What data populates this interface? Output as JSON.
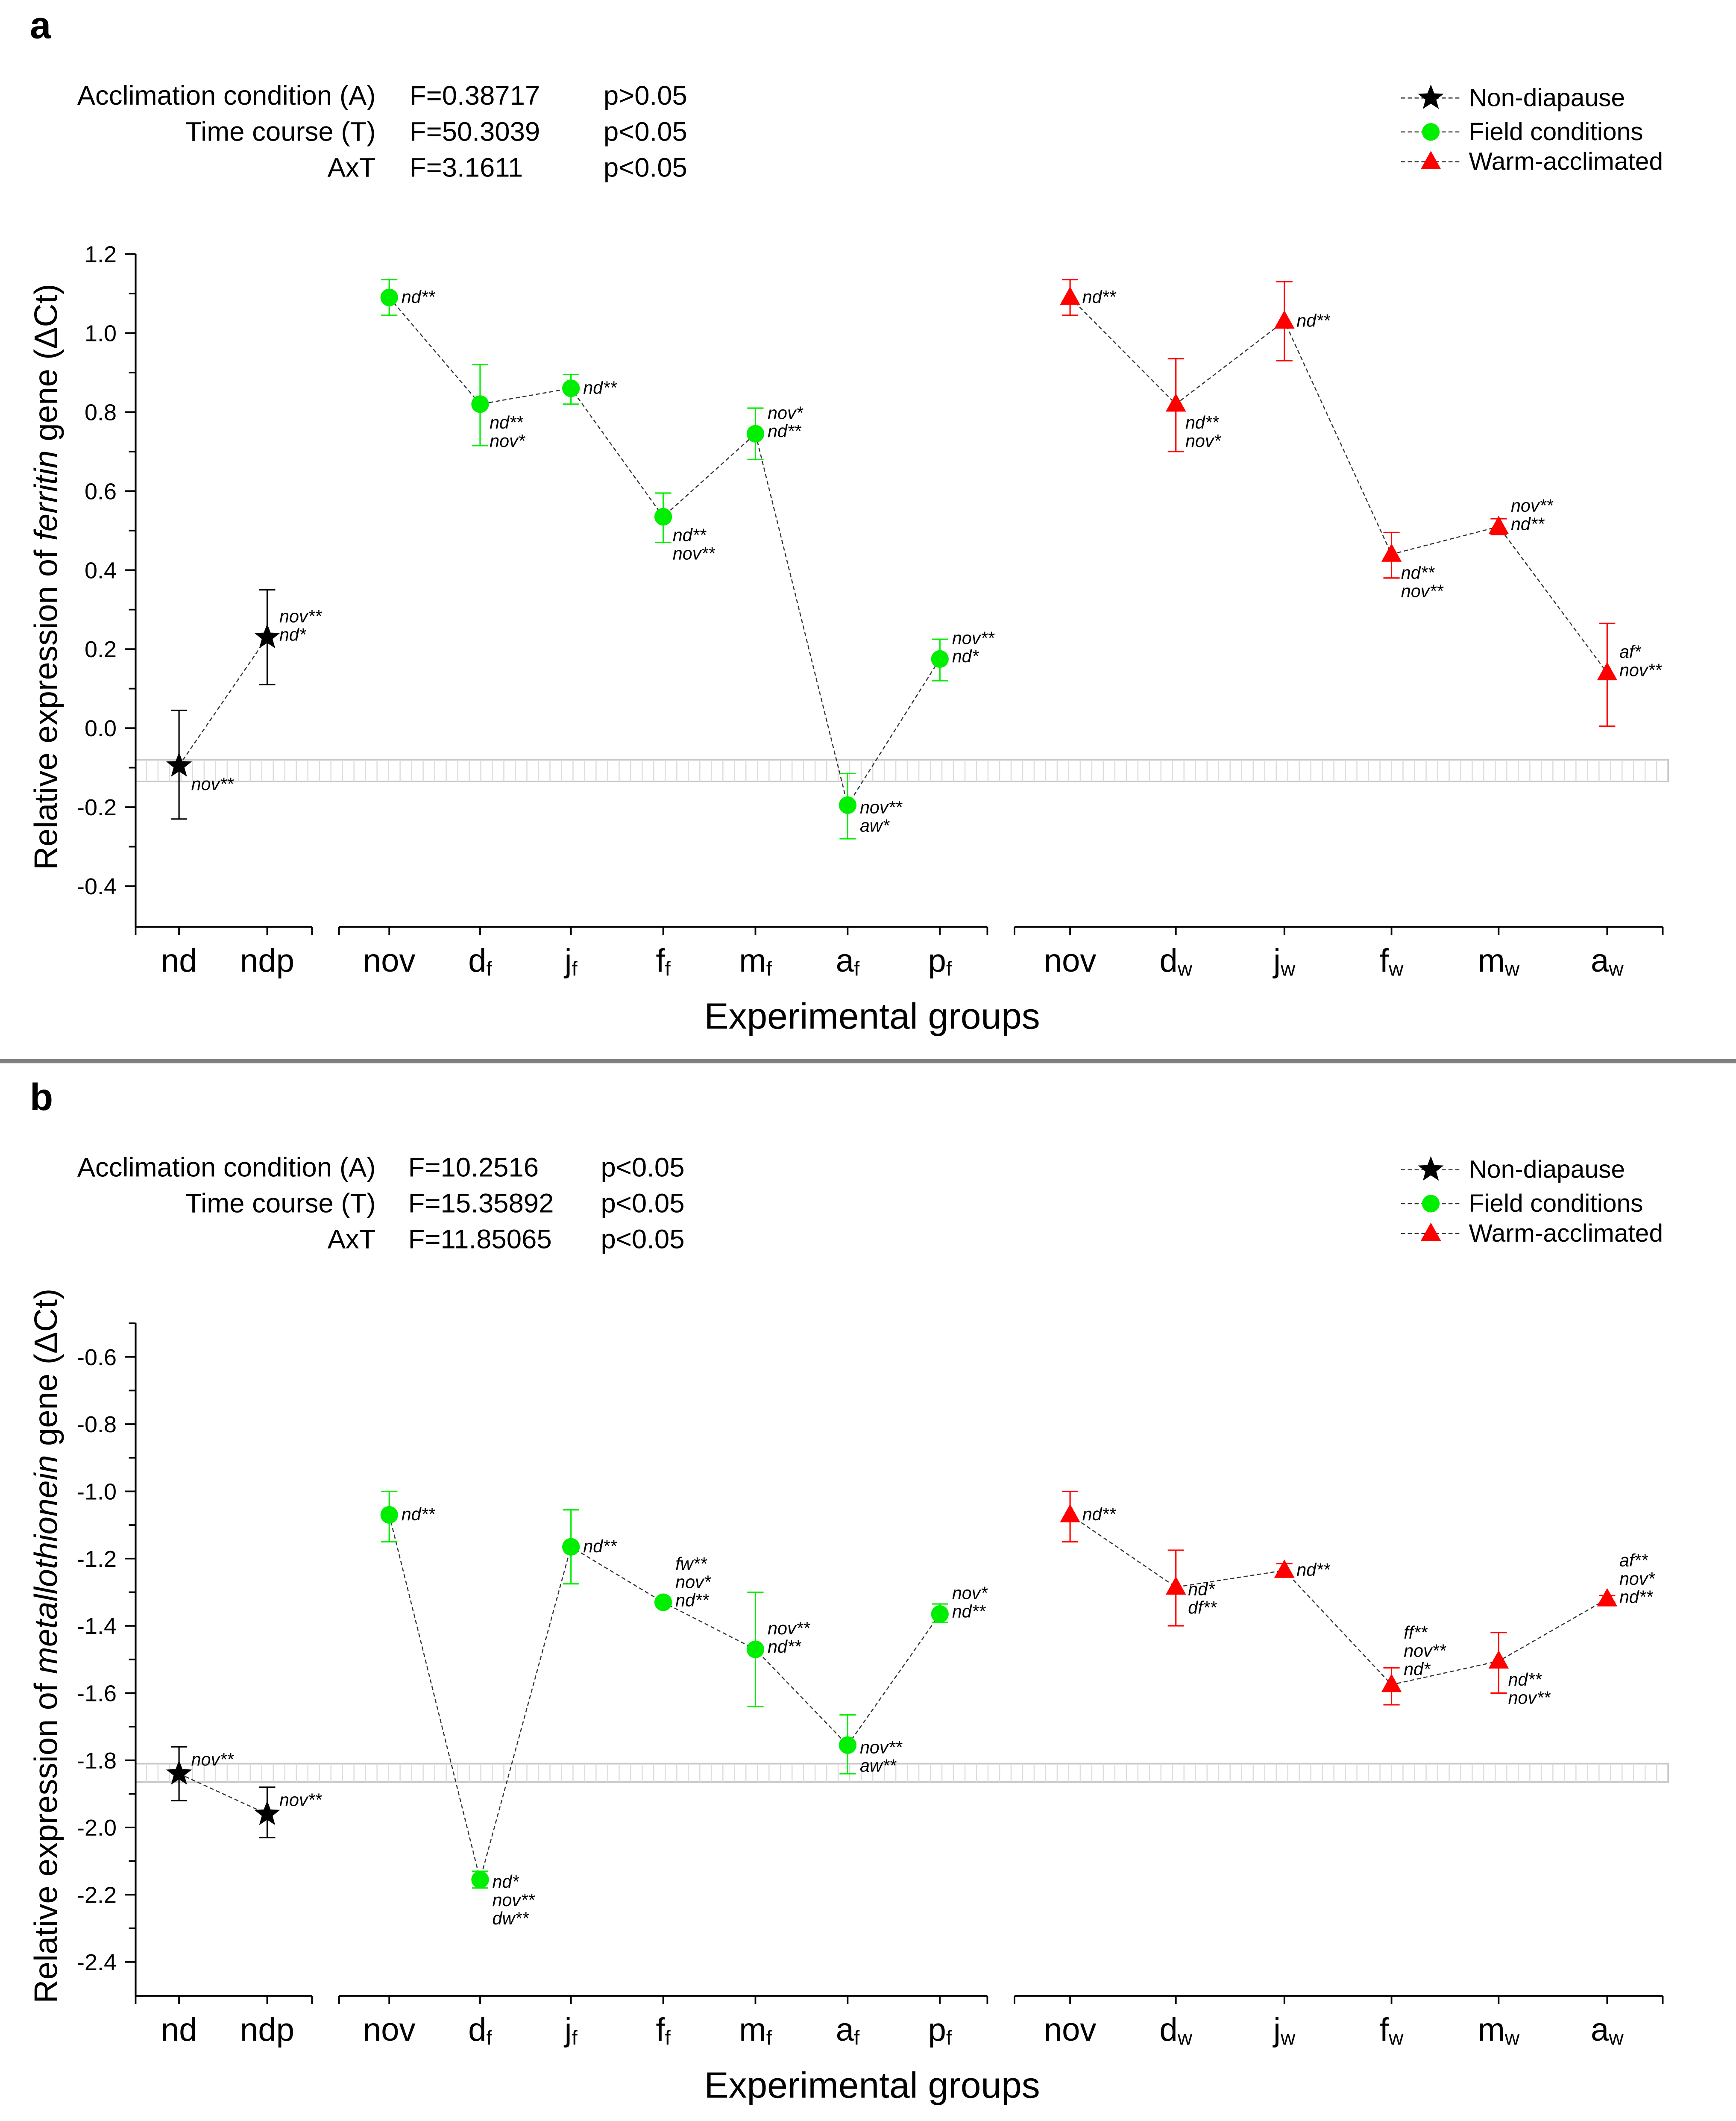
{
  "colors": {
    "non_diapause": "#000000",
    "field": "#00ee00",
    "warm": "#ff0000",
    "band": "#c8c8c8",
    "divider": "#808080"
  },
  "legend": [
    "Non-diapause",
    "Field conditions",
    "Warm-acclimated"
  ],
  "chart_data": [
    {
      "type": "scatter",
      "panel_label": "a",
      "stats": [
        {
          "label": "Acclimation condition (A)",
          "F": "F=0.38717",
          "p": "p>0.05"
        },
        {
          "label": "Time course (T)",
          "F": "F=50.3039",
          "p": "p<0.05"
        },
        {
          "label": "AxT",
          "F": "F=3.1611",
          "p": "p<0.05"
        }
      ],
      "ylabel_pre": "Relative expression of ",
      "ylabel_gene": "ferritin",
      "ylabel_post": " gene (ΔCt)",
      "xlabel": "Experimental groups",
      "ylim": [
        -0.5,
        1.2
      ],
      "yticks": [
        "1.2",
        "1.0",
        "0.8",
        "0.6",
        "0.4",
        "0.2",
        "0.0",
        "-0.2",
        "-0.4"
      ],
      "band": [
        -0.135,
        -0.08
      ],
      "categories": [
        {
          "main": "nd",
          "sub": ""
        },
        {
          "main": "ndp",
          "sub": ""
        },
        {
          "main": "nov",
          "sub": ""
        },
        {
          "main": "d",
          "sub": "f"
        },
        {
          "main": "j",
          "sub": "f"
        },
        {
          "main": "f",
          "sub": "f"
        },
        {
          "main": "m",
          "sub": "f"
        },
        {
          "main": "a",
          "sub": "f"
        },
        {
          "main": "p",
          "sub": "f"
        },
        {
          "main": "nov",
          "sub": ""
        },
        {
          "main": "d",
          "sub": "w"
        },
        {
          "main": "j",
          "sub": "w"
        },
        {
          "main": "f",
          "sub": "w"
        },
        {
          "main": "m",
          "sub": "w"
        },
        {
          "main": "a",
          "sub": "w"
        }
      ],
      "series": [
        {
          "name": "Non-diapause",
          "marker": "star",
          "color_key": "non_diapause",
          "indices": [
            0,
            1
          ],
          "values": [
            -0.095,
            0.23
          ],
          "err_hi": [
            0.045,
            0.35
          ],
          "err_lo": [
            -0.23,
            0.11
          ],
          "annotations": [
            {
              "pos": "below",
              "lines": [
                "nov**"
              ]
            },
            {
              "pos": "above",
              "lines": [
                "nov**",
                "nd*"
              ]
            }
          ]
        },
        {
          "name": "Field conditions",
          "marker": "circle",
          "color_key": "field",
          "indices": [
            2,
            3,
            4,
            5,
            6,
            7,
            8
          ],
          "values": [
            1.09,
            0.82,
            0.86,
            0.535,
            0.745,
            -0.195,
            0.175
          ],
          "err_hi": [
            1.135,
            0.92,
            0.895,
            0.595,
            0.81,
            -0.115,
            0.225
          ],
          "err_lo": [
            1.045,
            0.715,
            0.82,
            0.47,
            0.68,
            -0.28,
            0.12
          ],
          "annotations": [
            {
              "pos": "right",
              "lines": [
                "nd**"
              ]
            },
            {
              "pos": "below",
              "lines": [
                "nd**",
                "nov*"
              ]
            },
            {
              "pos": "right",
              "lines": [
                "nd**"
              ]
            },
            {
              "pos": "below",
              "lines": [
                "nd**",
                "nov**"
              ]
            },
            {
              "pos": "above",
              "lines": [
                "nov*",
                "nd**"
              ]
            },
            {
              "pos": "right-down",
              "lines": [
                "nov**",
                "aw*"
              ]
            },
            {
              "pos": "above",
              "lines": [
                "nov**",
                "nd*"
              ]
            }
          ]
        },
        {
          "name": "Warm-acclimated",
          "marker": "triangle",
          "color_key": "warm",
          "indices": [
            9,
            10,
            11,
            12,
            13,
            14
          ],
          "values": [
            1.09,
            0.82,
            1.03,
            0.44,
            0.51,
            0.14
          ],
          "err_hi": [
            1.135,
            0.935,
            1.13,
            0.495,
            0.53,
            0.265
          ],
          "err_lo": [
            1.045,
            0.7,
            0.93,
            0.38,
            0.49,
            0.005
          ],
          "annotations": [
            {
              "pos": "right",
              "lines": [
                "nd**"
              ]
            },
            {
              "pos": "below",
              "lines": [
                "nd**",
                "nov*"
              ]
            },
            {
              "pos": "right",
              "lines": [
                "nd**"
              ]
            },
            {
              "pos": "below",
              "lines": [
                "nd**",
                "nov**"
              ]
            },
            {
              "pos": "above",
              "lines": [
                "nov**",
                "nd**"
              ]
            },
            {
              "pos": "above",
              "lines": [
                "af*",
                "nov**"
              ]
            }
          ]
        }
      ]
    },
    {
      "type": "scatter",
      "panel_label": "b",
      "stats": [
        {
          "label": "Acclimation condition (A)",
          "F": "F=10.2516",
          "p": "p<0.05"
        },
        {
          "label": "Time course (T)",
          "F": "F=15.35892",
          "p": "p<0.05"
        },
        {
          "label": "AxT",
          "F": "F=11.85065",
          "p": "p<0.05"
        }
      ],
      "ylabel_pre": "Relative expression of ",
      "ylabel_gene": "metallothionein",
      "ylabel_post": " gene (ΔCt)",
      "xlabel": "Experimental groups",
      "ylim": [
        -2.5,
        -0.5
      ],
      "yticks": [
        "-0.6",
        "-0.8",
        "-1.0",
        "-1.2",
        "-1.4",
        "-1.6",
        "-1.8",
        "-2.0",
        "-2.2",
        "-2.4"
      ],
      "band": [
        -1.865,
        -1.81
      ],
      "categories": [
        {
          "main": "nd",
          "sub": ""
        },
        {
          "main": "ndp",
          "sub": ""
        },
        {
          "main": "nov",
          "sub": ""
        },
        {
          "main": "d",
          "sub": "f"
        },
        {
          "main": "j",
          "sub": "f"
        },
        {
          "main": "f",
          "sub": "f"
        },
        {
          "main": "m",
          "sub": "f"
        },
        {
          "main": "a",
          "sub": "f"
        },
        {
          "main": "p",
          "sub": "f"
        },
        {
          "main": "nov",
          "sub": ""
        },
        {
          "main": "d",
          "sub": "w"
        },
        {
          "main": "j",
          "sub": "w"
        },
        {
          "main": "f",
          "sub": "w"
        },
        {
          "main": "m",
          "sub": "w"
        },
        {
          "main": "a",
          "sub": "w"
        }
      ],
      "series": [
        {
          "name": "Non-diapause",
          "marker": "star",
          "color_key": "non_diapause",
          "indices": [
            0,
            1
          ],
          "values": [
            -1.84,
            -1.96
          ],
          "err_hi": [
            -1.76,
            -1.88
          ],
          "err_lo": [
            -1.92,
            -2.03
          ],
          "annotations": [
            {
              "pos": "right-up",
              "lines": [
                "nov**"
              ]
            },
            {
              "pos": "right-up",
              "lines": [
                "nov**"
              ]
            }
          ]
        },
        {
          "name": "Field conditions",
          "marker": "circle",
          "color_key": "field",
          "indices": [
            2,
            3,
            4,
            5,
            6,
            7,
            8
          ],
          "values": [
            -1.07,
            -2.155,
            -1.165,
            -1.33,
            -1.47,
            -1.755,
            -1.365
          ],
          "err_hi": [
            -1.0,
            -2.13,
            -1.055,
            -1.32,
            -1.3,
            -1.665,
            -1.335
          ],
          "err_lo": [
            -1.15,
            -2.18,
            -1.275,
            -1.34,
            -1.64,
            -1.84,
            -1.39
          ],
          "annotations": [
            {
              "pos": "right",
              "lines": [
                "nd**"
              ]
            },
            {
              "pos": "right-down",
              "lines": [
                "nd*",
                "nov**",
                "dw**"
              ]
            },
            {
              "pos": "right",
              "lines": [
                "nd**"
              ]
            },
            {
              "pos": "above",
              "lines": [
                "fw**",
                "nov*",
                "nd**"
              ]
            },
            {
              "pos": "above",
              "lines": [
                "nov**",
                "nd**"
              ]
            },
            {
              "pos": "right-down",
              "lines": [
                "nov**",
                "aw**"
              ]
            },
            {
              "pos": "above",
              "lines": [
                "nov*",
                "nd**"
              ]
            }
          ]
        },
        {
          "name": "Warm-acclimated",
          "marker": "triangle",
          "color_key": "warm",
          "indices": [
            9,
            10,
            11,
            12,
            13,
            14
          ],
          "values": [
            -1.07,
            -1.285,
            -1.235,
            -1.575,
            -1.505,
            -1.32
          ],
          "err_hi": [
            -1.0,
            -1.175,
            -1.215,
            -1.525,
            -1.42,
            -1.31
          ],
          "err_lo": [
            -1.15,
            -1.4,
            -1.255,
            -1.635,
            -1.6,
            -1.33
          ],
          "annotations": [
            {
              "pos": "right",
              "lines": [
                "nd**"
              ]
            },
            {
              "pos": "right-down",
              "lines": [
                "nd*",
                "df**"
              ]
            },
            {
              "pos": "right",
              "lines": [
                "nd**"
              ]
            },
            {
              "pos": "above-high",
              "lines": [
                "ff**",
                "nov**",
                "nd*"
              ]
            },
            {
              "pos": "below",
              "lines": [
                "nd**",
                "nov**"
              ]
            },
            {
              "pos": "above",
              "lines": [
                "af**",
                "nov*",
                "nd**"
              ]
            }
          ]
        }
      ]
    }
  ]
}
